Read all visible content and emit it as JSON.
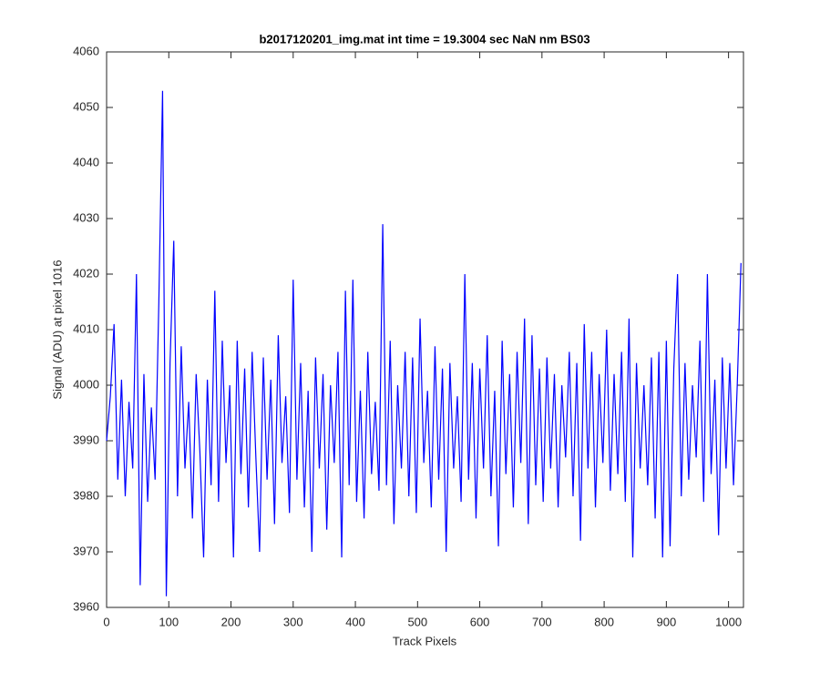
{
  "chart_data": {
    "type": "line",
    "title": "b2017120201_img.mat int time = 19.3004 sec  NaN nm BS03",
    "x_label": "Track Pixels",
    "y_label": "Signal (ADU) at pixel 1016",
    "x": [
      0,
      6,
      12,
      18,
      24,
      30,
      36,
      42,
      48,
      54,
      60,
      66,
      72,
      78,
      84,
      90,
      96,
      102,
      108,
      114,
      120,
      126,
      132,
      138,
      144,
      150,
      156,
      162,
      168,
      174,
      180,
      186,
      192,
      198,
      204,
      210,
      216,
      222,
      228,
      234,
      240,
      246,
      252,
      258,
      264,
      270,
      276,
      282,
      288,
      294,
      300,
      306,
      312,
      318,
      324,
      330,
      336,
      342,
      348,
      354,
      360,
      366,
      372,
      378,
      384,
      390,
      396,
      402,
      408,
      414,
      420,
      426,
      432,
      438,
      444,
      450,
      456,
      462,
      468,
      474,
      480,
      486,
      492,
      498,
      504,
      510,
      516,
      522,
      528,
      534,
      540,
      546,
      552,
      558,
      564,
      570,
      576,
      582,
      588,
      594,
      600,
      606,
      612,
      618,
      624,
      630,
      636,
      642,
      648,
      654,
      660,
      666,
      672,
      678,
      684,
      690,
      696,
      702,
      708,
      714,
      720,
      726,
      732,
      738,
      744,
      750,
      756,
      762,
      768,
      774,
      780,
      786,
      792,
      798,
      804,
      810,
      816,
      822,
      828,
      834,
      840,
      846,
      852,
      858,
      864,
      870,
      876,
      882,
      888,
      894,
      900,
      906,
      912,
      918,
      924,
      930,
      936,
      942,
      948,
      954,
      960,
      966,
      972,
      978,
      984,
      990,
      996,
      1002,
      1008,
      1014,
      1020
    ],
    "series": [
      {
        "color": "#0000ff",
        "values": [
          3990,
          3998,
          4011,
          3983,
          4001,
          3980,
          3997,
          3985,
          4020,
          3964,
          4002,
          3979,
          3996,
          3983,
          4015,
          4053,
          3962,
          4004,
          4026,
          3980,
          4007,
          3985,
          3997,
          3976,
          4002,
          3988,
          3969,
          4001,
          3982,
          4017,
          3979,
          4008,
          3986,
          4000,
          3969,
          4008,
          3984,
          4003,
          3978,
          4006,
          3987,
          3970,
          4005,
          3983,
          4001,
          3975,
          4009,
          3986,
          3998,
          3977,
          4019,
          3983,
          4004,
          3978,
          3999,
          3970,
          4005,
          3985,
          4002,
          3974,
          4000,
          3986,
          4006,
          3969,
          4017,
          3982,
          4019,
          3979,
          3999,
          3976,
          4006,
          3984,
          3997,
          3981,
          4029,
          3982,
          4008,
          3975,
          4000,
          3985,
          4006,
          3980,
          4005,
          3977,
          4012,
          3986,
          3999,
          3978,
          4007,
          3983,
          4003,
          3970,
          4004,
          3985,
          3998,
          3979,
          4020,
          3983,
          4004,
          3976,
          4003,
          3985,
          4009,
          3980,
          3999,
          3971,
          4008,
          3984,
          4002,
          3978,
          4006,
          3986,
          4012,
          3975,
          4009,
          3982,
          4003,
          3979,
          4005,
          3985,
          4002,
          3978,
          4000,
          3987,
          4006,
          3980,
          4004,
          3972,
          4011,
          3985,
          4006,
          3978,
          4002,
          3986,
          4010,
          3981,
          4002,
          3984,
          4006,
          3979,
          4012,
          3969,
          4004,
          3985,
          4000,
          3982,
          4005,
          3976,
          4006,
          3969,
          4008,
          3971,
          4003,
          4020,
          3980,
          4004,
          3983,
          4000,
          3987,
          4008,
          3979,
          4020,
          3984,
          4001,
          3973,
          4005,
          3985,
          4004,
          3982,
          4000,
          4022
        ]
      }
    ],
    "xlim": [
      0,
      1024
    ],
    "ylim": [
      3960,
      4060
    ],
    "xticks": [
      0,
      100,
      200,
      300,
      400,
      500,
      600,
      700,
      800,
      900,
      1000
    ],
    "yticks": [
      3960,
      3970,
      3980,
      3990,
      4000,
      4010,
      4020,
      4030,
      4040,
      4050,
      4060
    ],
    "grid": false
  }
}
